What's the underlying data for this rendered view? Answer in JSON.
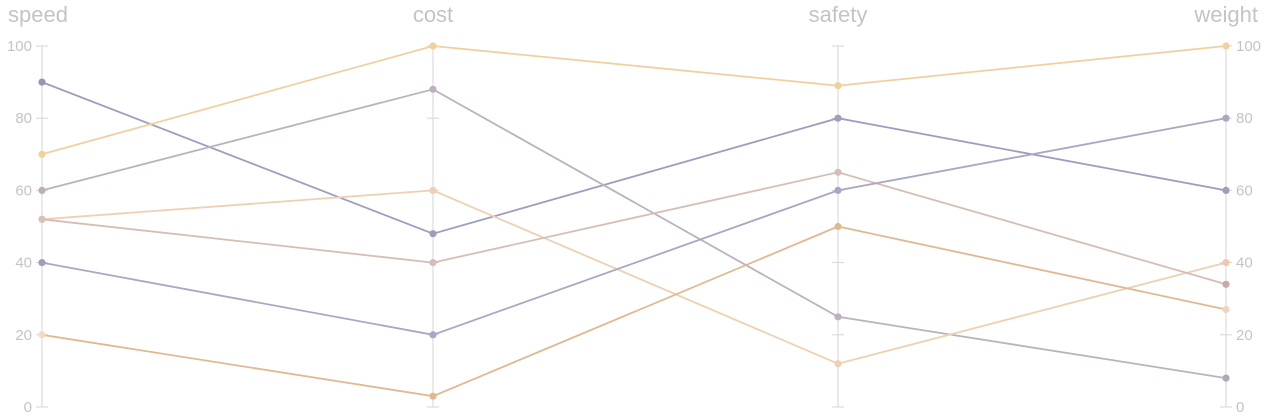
{
  "chart_data": {
    "type": "parallel-coordinates",
    "dimensions": [
      "speed",
      "cost",
      "safety",
      "weight"
    ],
    "ylim": [
      0,
      100
    ],
    "ticks": [
      0,
      20,
      40,
      60,
      80,
      100
    ],
    "left_axis_labels": true,
    "right_axis_labels": true,
    "grid": false,
    "series": [
      {
        "values": [
          90,
          48,
          80,
          60
        ],
        "color": "#9e9cbf"
      },
      {
        "values": [
          70,
          100,
          89,
          100
        ],
        "color": "#f2cf9e"
      },
      {
        "values": [
          60,
          88,
          25,
          8
        ],
        "color": "#bcb2be"
      },
      {
        "values": [
          52,
          60,
          12,
          40
        ],
        "color": "#efd0b2"
      },
      {
        "values": [
          52,
          40,
          65,
          34
        ],
        "color": "#d5beb5"
      },
      {
        "values": [
          40,
          20,
          60,
          80
        ],
        "color": "#a9a7c3"
      },
      {
        "values": [
          20,
          3,
          50,
          27
        ],
        "color": "#e1b98f"
      }
    ],
    "end_dot_colors": {
      "speed": [
        "#9595b8",
        "#f2cf9e",
        "#bcaeb8",
        "#d8c2b8",
        "#d8c2b8",
        "#9e9cbf",
        "#f0dcc4"
      ],
      "weight": [
        "#9e9cbf",
        "#f2cf9e",
        "#b0a8b8",
        "#efc8a8",
        "#c8aaa0",
        "#a9a7c3",
        "#f0d4c0"
      ]
    }
  }
}
